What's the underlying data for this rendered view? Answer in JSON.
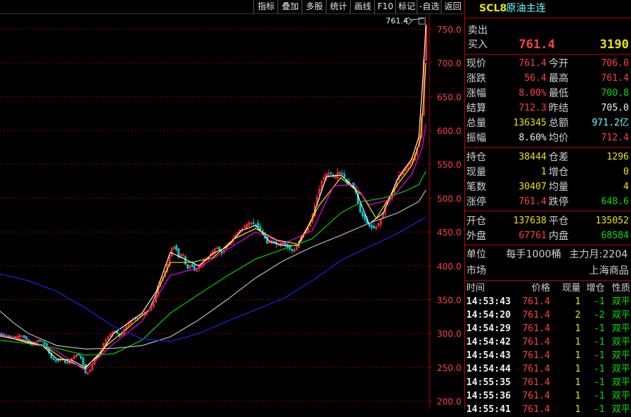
{
  "toolbar": {
    "buttons": [
      "指标",
      "叠加",
      "多股",
      "统计",
      "画线",
      "F10",
      "标记",
      "-自选",
      "返回"
    ]
  },
  "header": {
    "code": "SCL8",
    "name": "原油主连"
  },
  "quote": {
    "sell_label": "卖出",
    "buy_label": "买入",
    "bid_price": "761.4",
    "bid_volume": "3190",
    "rows1": [
      {
        "l1": "现价",
        "v1": "761.4",
        "c1": "#ff4040",
        "l2": "今开",
        "v2": "706.0",
        "c2": "#ff4040"
      },
      {
        "l1": "涨跌",
        "v1": "56.4",
        "c1": "#ff4040",
        "l2": "最高",
        "v2": "761.4",
        "c2": "#ff4040"
      },
      {
        "l1": "涨幅",
        "v1": "8.00%",
        "c1": "#ff4040",
        "l2": "最低",
        "v2": "700.8",
        "c2": "#00e000"
      },
      {
        "l1": "结算",
        "v1": "712.3",
        "c1": "#ff4040",
        "l2": "昨结",
        "v2": "705.0",
        "c2": "#f0f0f0"
      },
      {
        "l1": "总量",
        "v1": "136345",
        "c1": "#e6e600",
        "l2": "总额",
        "v2": "971.2亿",
        "c2": "#66ffff"
      },
      {
        "l1": "振幅",
        "v1": "8.60%",
        "c1": "#f0f0f0",
        "l2": "均价",
        "v2": "712.4",
        "c2": "#ff4040"
      }
    ],
    "rows2": [
      {
        "l1": "持仓",
        "v1": "38444",
        "c1": "#e6e600",
        "l2": "仓差",
        "v2": "1296",
        "c2": "#e6e600"
      },
      {
        "l1": "现量",
        "v1": "1",
        "c1": "#e6e600",
        "l2": "增仓",
        "v2": "0",
        "c2": "#e6e600"
      },
      {
        "l1": "笔数",
        "v1": "30407",
        "c1": "#e6e600",
        "l2": "均量",
        "v2": "4",
        "c2": "#e6e600"
      },
      {
        "l1": "涨停",
        "v1": "761.4",
        "c1": "#ff4040",
        "l2": "跌停",
        "v2": "648.6",
        "c2": "#00e000"
      }
    ],
    "rows3": [
      {
        "l1": "开仓",
        "v1": "137638",
        "c1": "#e6e600",
        "l2": "平仓",
        "v2": "135052",
        "c2": "#e6e600"
      },
      {
        "l1": "外盘",
        "v1": "67761",
        "c1": "#ff4040",
        "l2": "内盘",
        "v2": "68584",
        "c2": "#00e000"
      }
    ],
    "unit_label": "单位",
    "unit_value": "每手1000桶",
    "main_month": "主力月:2204",
    "market_label": "市场",
    "market_value": "上海商品"
  },
  "ticks": {
    "headers": [
      "时间",
      "价格",
      "现量",
      "增仓",
      "性质"
    ],
    "rows": [
      [
        "14:53:43",
        "761.4",
        "1",
        "-1",
        "双平"
      ],
      [
        "14:54:20",
        "761.4",
        "2",
        "-2",
        "双平"
      ],
      [
        "14:54:29",
        "761.4",
        "1",
        "-1",
        "双平"
      ],
      [
        "14:54:42",
        "761.4",
        "1",
        "-1",
        "双平"
      ],
      [
        "14:54:43",
        "761.4",
        "1",
        "-1",
        "双平"
      ],
      [
        "14:54:44",
        "761.4",
        "1",
        "-1",
        "双平"
      ],
      [
        "14:55:35",
        "761.4",
        "1",
        "-1",
        "双平"
      ],
      [
        "14:55:36",
        "761.4",
        "1",
        "-1",
        "双平"
      ],
      [
        "14:55:41",
        "761.4",
        "1",
        "-1",
        "双平"
      ]
    ]
  },
  "chart_data": {
    "type": "candlestick",
    "price_axis_labels": [
      "750.0",
      "700.0",
      "650.0",
      "600.0",
      "550.0",
      "500.0",
      "450.0",
      "400.0",
      "350.0",
      "300.0",
      "250.0",
      "200.0"
    ],
    "ylim": [
      188,
      772
    ],
    "last_price_label": "761.4",
    "colors": {
      "up": "#ff3232",
      "down": "#00c8c8",
      "ma5": "#ffffff",
      "ma10": "#ffff00",
      "ma20": "#ff00ff",
      "ma60": "#00e000",
      "ma120": "#c8c8c8",
      "ma250": "#2020ff"
    },
    "close_path": [
      [
        0,
        300
      ],
      [
        10,
        296
      ],
      [
        20,
        294
      ],
      [
        28,
        298
      ],
      [
        36,
        291
      ],
      [
        44,
        282
      ],
      [
        52,
        290
      ],
      [
        60,
        287
      ],
      [
        66,
        276
      ],
      [
        72,
        262
      ],
      [
        80,
        258
      ],
      [
        86,
        264
      ],
      [
        92,
        255
      ],
      [
        100,
        263
      ],
      [
        108,
        270
      ],
      [
        114,
        262
      ],
      [
        120,
        239
      ],
      [
        126,
        246
      ],
      [
        132,
        263
      ],
      [
        140,
        270
      ],
      [
        146,
        288
      ],
      [
        152,
        296
      ],
      [
        160,
        305
      ],
      [
        168,
        295
      ],
      [
        176,
        310
      ],
      [
        184,
        320
      ],
      [
        192,
        323
      ],
      [
        200,
        329
      ],
      [
        208,
        332
      ],
      [
        216,
        345
      ],
      [
        222,
        371
      ],
      [
        228,
        382
      ],
      [
        234,
        400
      ],
      [
        240,
        425
      ],
      [
        246,
        430
      ],
      [
        250,
        412
      ],
      [
        256,
        420
      ],
      [
        262,
        395
      ],
      [
        268,
        402
      ],
      [
        274,
        392
      ],
      [
        280,
        400
      ],
      [
        288,
        408
      ],
      [
        296,
        418
      ],
      [
        304,
        428
      ],
      [
        312,
        418
      ],
      [
        318,
        430
      ],
      [
        326,
        438
      ],
      [
        334,
        450
      ],
      [
        342,
        457
      ],
      [
        350,
        464
      ],
      [
        358,
        462
      ],
      [
        364,
        456
      ],
      [
        370,
        446
      ],
      [
        376,
        432
      ],
      [
        382,
        438
      ],
      [
        390,
        430
      ],
      [
        398,
        435
      ],
      [
        404,
        428
      ],
      [
        410,
        422
      ],
      [
        416,
        425
      ],
      [
        422,
        440
      ],
      [
        428,
        450
      ],
      [
        434,
        458
      ],
      [
        440,
        478
      ],
      [
        446,
        502
      ],
      [
        452,
        525
      ],
      [
        458,
        535
      ],
      [
        464,
        538
      ],
      [
        470,
        530
      ],
      [
        476,
        540
      ],
      [
        482,
        535
      ],
      [
        488,
        522
      ],
      [
        494,
        520
      ],
      [
        500,
        510
      ],
      [
        506,
        480
      ],
      [
        512,
        470
      ],
      [
        518,
        460
      ],
      [
        524,
        455
      ],
      [
        530,
        458
      ],
      [
        536,
        470
      ],
      [
        542,
        490
      ],
      [
        548,
        500
      ],
      [
        554,
        513
      ],
      [
        560,
        532
      ],
      [
        566,
        540
      ],
      [
        572,
        548
      ],
      [
        578,
        555
      ],
      [
        584,
        565
      ],
      [
        588,
        580
      ],
      [
        592,
        600
      ],
      [
        594,
        640
      ],
      [
        596,
        700
      ],
      [
        598,
        745
      ],
      [
        600,
        761.4
      ]
    ],
    "mas": [
      {
        "name": "MA5",
        "color": "#ffffff",
        "points": [
          [
            0,
            298
          ],
          [
            20,
            292
          ],
          [
            40,
            286
          ],
          [
            60,
            282
          ],
          [
            80,
            262
          ],
          [
            100,
            261
          ],
          [
            120,
            250
          ],
          [
            140,
            268
          ],
          [
            160,
            300
          ],
          [
            180,
            315
          ],
          [
            200,
            330
          ],
          [
            220,
            362
          ],
          [
            240,
            420
          ],
          [
            260,
            410
          ],
          [
            280,
            400
          ],
          [
            300,
            418
          ],
          [
            320,
            428
          ],
          [
            340,
            452
          ],
          [
            360,
            460
          ],
          [
            380,
            436
          ],
          [
            400,
            430
          ],
          [
            420,
            430
          ],
          [
            440,
            470
          ],
          [
            460,
            532
          ],
          [
            480,
            534
          ],
          [
            500,
            515
          ],
          [
            520,
            462
          ],
          [
            540,
            478
          ],
          [
            560,
            528
          ],
          [
            580,
            558
          ],
          [
            590,
            590
          ],
          [
            596,
            680
          ],
          [
            600,
            755
          ]
        ]
      },
      {
        "name": "MA10",
        "color": "#ffff00",
        "points": [
          [
            0,
            296
          ],
          [
            30,
            290
          ],
          [
            60,
            283
          ],
          [
            90,
            262
          ],
          [
            120,
            248
          ],
          [
            150,
            282
          ],
          [
            180,
            308
          ],
          [
            210,
            335
          ],
          [
            240,
            405
          ],
          [
            270,
            405
          ],
          [
            300,
            412
          ],
          [
            330,
            440
          ],
          [
            360,
            455
          ],
          [
            390,
            438
          ],
          [
            420,
            432
          ],
          [
            450,
            490
          ],
          [
            480,
            530
          ],
          [
            510,
            505
          ],
          [
            530,
            470
          ],
          [
            560,
            520
          ],
          [
            580,
            548
          ],
          [
            592,
            585
          ],
          [
            598,
            660
          ],
          [
            600,
            700
          ]
        ]
      },
      {
        "name": "MA20",
        "color": "#ff00ff",
        "points": [
          [
            0,
            297
          ],
          [
            40,
            290
          ],
          [
            80,
            274
          ],
          [
            120,
            245
          ],
          [
            160,
            285
          ],
          [
            200,
            318
          ],
          [
            240,
            386
          ],
          [
            280,
            397
          ],
          [
            320,
            424
          ],
          [
            360,
            450
          ],
          [
            400,
            433
          ],
          [
            440,
            452
          ],
          [
            470,
            518
          ],
          [
            500,
            520
          ],
          [
            520,
            490
          ],
          [
            550,
            498
          ],
          [
            580,
            535
          ],
          [
            595,
            575
          ],
          [
            600,
            610
          ]
        ]
      },
      {
        "name": "MA60",
        "color": "#00e000",
        "points": [
          [
            0,
            290
          ],
          [
            40,
            285
          ],
          [
            80,
            278
          ],
          [
            120,
            268
          ],
          [
            160,
            270
          ],
          [
            200,
            290
          ],
          [
            240,
            330
          ],
          [
            280,
            358
          ],
          [
            320,
            385
          ],
          [
            360,
            410
          ],
          [
            400,
            425
          ],
          [
            440,
            440
          ],
          [
            480,
            478
          ],
          [
            510,
            495
          ],
          [
            540,
            500
          ],
          [
            570,
            510
          ],
          [
            590,
            520
          ],
          [
            600,
            540
          ]
        ]
      },
      {
        "name": "MA120",
        "color": "#c8c8c8",
        "points": [
          [
            0,
            333
          ],
          [
            20,
            315
          ],
          [
            40,
            300
          ],
          [
            80,
            282
          ],
          [
            120,
            277
          ],
          [
            160,
            278
          ],
          [
            200,
            282
          ],
          [
            240,
            295
          ],
          [
            280,
            320
          ],
          [
            320,
            350
          ],
          [
            360,
            382
          ],
          [
            400,
            408
          ],
          [
            440,
            428
          ],
          [
            480,
            445
          ],
          [
            520,
            463
          ],
          [
            560,
            478
          ],
          [
            590,
            495
          ],
          [
            600,
            512
          ]
        ]
      },
      {
        "name": "MA250",
        "color": "#2020ff",
        "points": [
          [
            0,
            388
          ],
          [
            40,
            378
          ],
          [
            80,
            362
          ],
          [
            120,
            338
          ],
          [
            160,
            310
          ],
          [
            200,
            292
          ],
          [
            240,
            288
          ],
          [
            280,
            300
          ],
          [
            320,
            318
          ],
          [
            360,
            335
          ],
          [
            400,
            352
          ],
          [
            440,
            378
          ],
          [
            480,
            408
          ],
          [
            520,
            428
          ],
          [
            560,
            448
          ],
          [
            600,
            472
          ]
        ]
      }
    ]
  }
}
